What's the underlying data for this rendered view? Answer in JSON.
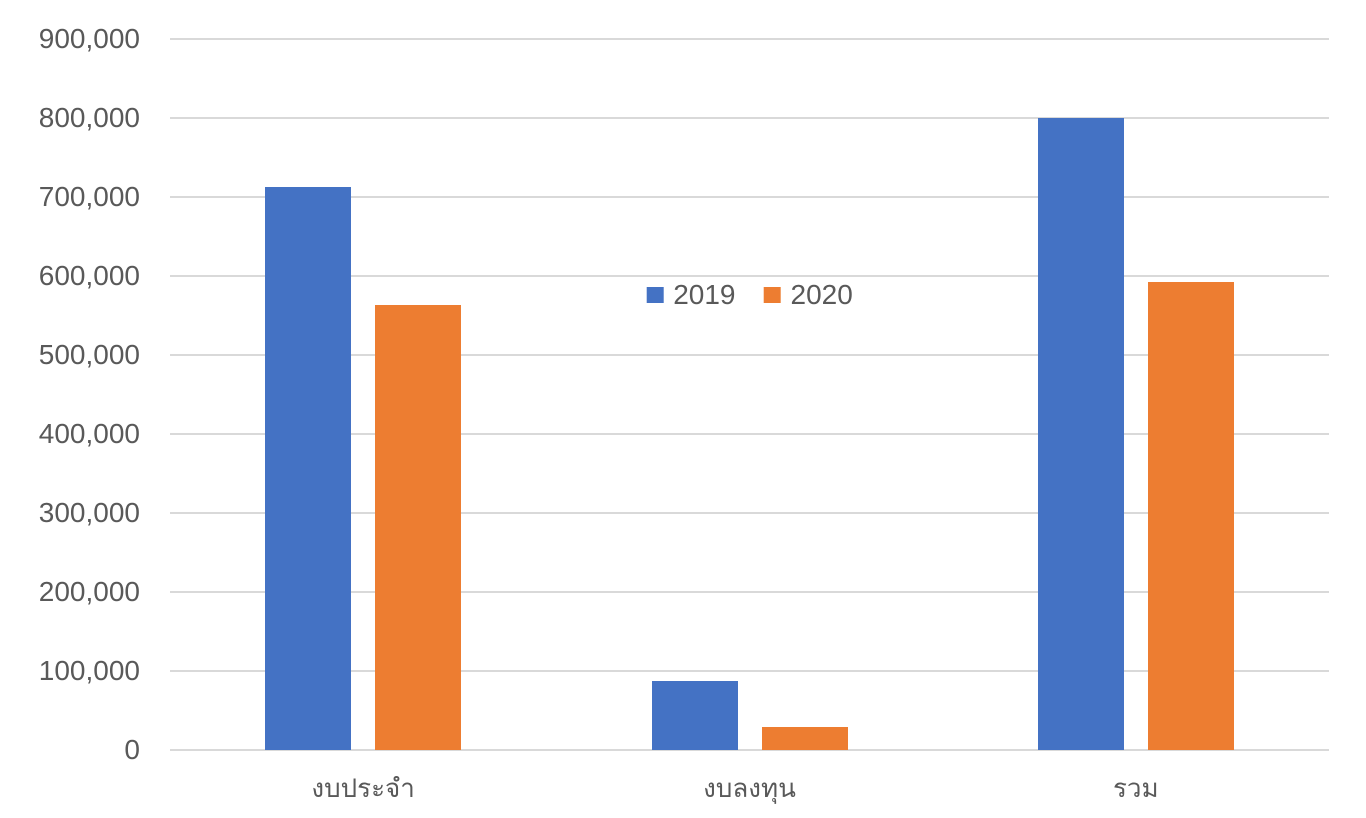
{
  "chart_data": {
    "type": "bar",
    "title": "",
    "xlabel": "",
    "ylabel": "",
    "categories": [
      "งบประจำ",
      "งบลงทุน",
      "รวม"
    ],
    "series": [
      {
        "name": "2019",
        "color": "#4472C4",
        "values": [
          713000,
          87000,
          800000
        ]
      },
      {
        "name": "2020",
        "color": "#ED7D31",
        "values": [
          563000,
          29000,
          592000
        ]
      }
    ],
    "ylim": [
      0,
      900000
    ],
    "ytick_step": 100000,
    "ytick_labels": [
      "0",
      "100,000",
      "200,000",
      "300,000",
      "400,000",
      "500,000",
      "600,000",
      "700,000",
      "800,000",
      "900,000"
    ],
    "grid": true,
    "gridline_color": "#D9D9D9",
    "axis_text_color": "#595959",
    "legend": {
      "position": "inside-center",
      "entries": [
        "2019",
        "2020"
      ]
    }
  }
}
